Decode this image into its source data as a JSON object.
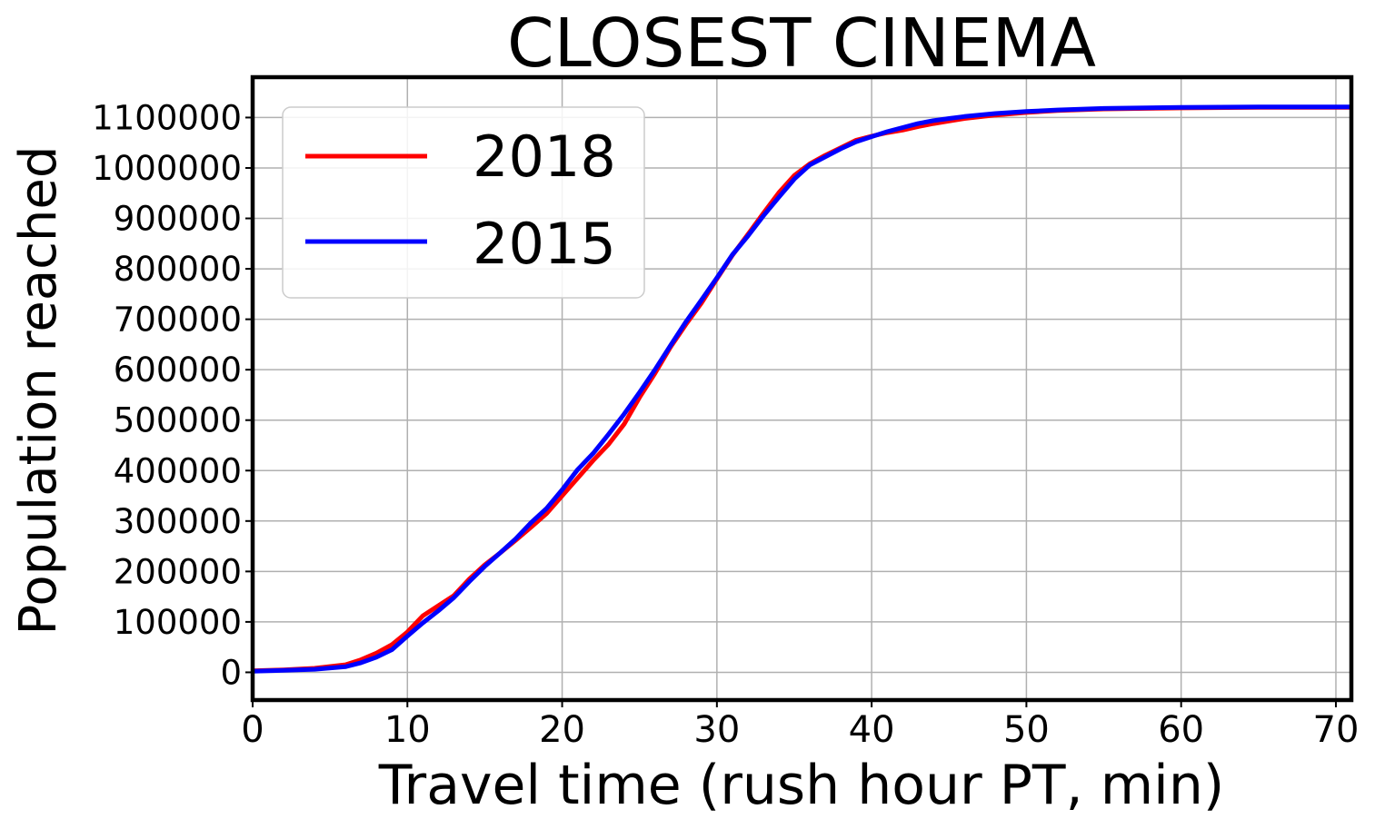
{
  "chart_data": {
    "type": "line",
    "title": "CLOSEST CINEMA",
    "xlabel": "Travel time (rush hour PT, min)",
    "ylabel": "Population reached",
    "xlim": [
      0,
      71
    ],
    "ylim": [
      -55000,
      1180000
    ],
    "xticks": [
      0,
      10,
      20,
      30,
      40,
      50,
      60,
      70
    ],
    "xtick_labels": [
      "0",
      "10",
      "20",
      "30",
      "40",
      "50",
      "60",
      "70"
    ],
    "yticks": [
      0,
      100000,
      200000,
      300000,
      400000,
      500000,
      600000,
      700000,
      800000,
      900000,
      1000000,
      1100000
    ],
    "ytick_labels": [
      "0",
      "100000",
      "200000",
      "300000",
      "400000",
      "500000",
      "600000",
      "700000",
      "800000",
      "900000",
      "1000000",
      "1100000"
    ],
    "grid": true,
    "legend_position": "top-left",
    "series": [
      {
        "name": "2018",
        "color": "#ff0000",
        "x": [
          0,
          2,
          4,
          6,
          7,
          8,
          9,
          10,
          11,
          12,
          13,
          14,
          15,
          16,
          17,
          18,
          19,
          20,
          21,
          22,
          23,
          24,
          25,
          26,
          27,
          28,
          29,
          30,
          31,
          32,
          33,
          34,
          35,
          36,
          37,
          38,
          39,
          40,
          41,
          42,
          43,
          44,
          45,
          46,
          48,
          50,
          52,
          55,
          60,
          65,
          71
        ],
        "y": [
          3000,
          5000,
          8000,
          15000,
          25000,
          38000,
          55000,
          80000,
          112000,
          132000,
          152000,
          185000,
          213000,
          237000,
          262000,
          288000,
          315000,
          350000,
          385000,
          420000,
          452000,
          492000,
          545000,
          593000,
          645000,
          690000,
          732000,
          780000,
          827000,
          868000,
          910000,
          951000,
          985000,
          1008000,
          1025000,
          1040000,
          1055000,
          1063000,
          1070000,
          1075000,
          1082000,
          1088000,
          1093000,
          1098000,
          1105000,
          1110000,
          1114000,
          1117000,
          1119000,
          1120000,
          1120000
        ]
      },
      {
        "name": "2015",
        "color": "#0000ff",
        "x": [
          0,
          2,
          4,
          6,
          7,
          8,
          9,
          10,
          11,
          12,
          13,
          14,
          15,
          16,
          17,
          18,
          19,
          20,
          21,
          22,
          23,
          24,
          25,
          26,
          27,
          28,
          29,
          30,
          31,
          32,
          33,
          34,
          35,
          36,
          37,
          38,
          39,
          40,
          41,
          42,
          43,
          44,
          45,
          46,
          48,
          50,
          52,
          55,
          60,
          65,
          71
        ],
        "y": [
          2000,
          4000,
          6000,
          11000,
          19000,
          30000,
          45000,
          72000,
          98000,
          122000,
          148000,
          180000,
          210000,
          237000,
          265000,
          297000,
          325000,
          362000,
          402000,
          434000,
          472000,
          512000,
          555000,
          600000,
          648000,
          695000,
          738000,
          782000,
          828000,
          865000,
          905000,
          942000,
          978000,
          1006000,
          1022000,
          1038000,
          1052000,
          1062000,
          1072000,
          1080000,
          1088000,
          1094000,
          1098000,
          1102000,
          1108000,
          1112000,
          1115000,
          1118000,
          1120000,
          1121000,
          1121000
        ]
      }
    ]
  }
}
